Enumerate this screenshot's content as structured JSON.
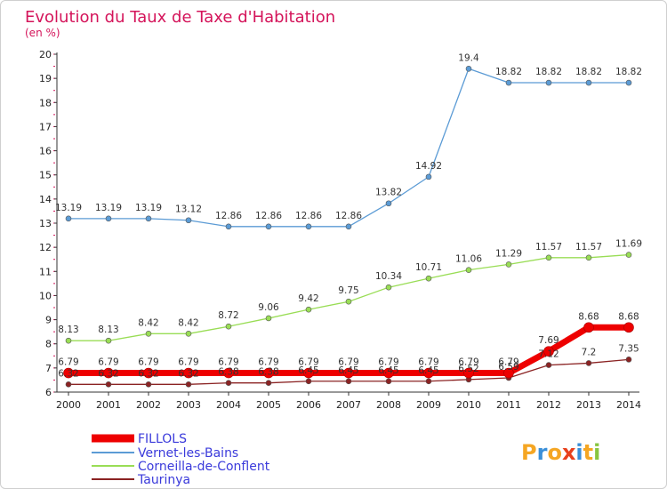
{
  "chart_data": {
    "type": "line",
    "title": "Evolution du Taux de Taxe d'Habitation",
    "ylabel": "(en %)",
    "x": [
      "2000",
      "2001",
      "2002",
      "2003",
      "2004",
      "2005",
      "2006",
      "2007",
      "2008",
      "2009",
      "2010",
      "2011",
      "2012",
      "2013",
      "2014"
    ],
    "ylim": [
      6,
      20
    ],
    "yticks": [
      6,
      7,
      8,
      9,
      10,
      11,
      12,
      13,
      14,
      15,
      16,
      17,
      18,
      19,
      20
    ],
    "legend_placement": "bottom-left",
    "series": [
      {
        "name": "FILLOLS",
        "color": "#ee0000",
        "values": [
          6.79,
          6.79,
          6.79,
          6.79,
          6.79,
          6.79,
          6.79,
          6.79,
          6.79,
          6.79,
          6.79,
          6.79,
          7.69,
          8.68,
          8.68
        ],
        "labels": [
          "6.79",
          "6.79",
          "6.79",
          "6.79",
          "6.79",
          "6.79",
          "6.79",
          "6.79",
          "6.79",
          "6.79",
          "6.79",
          "6.79",
          "7.69",
          "8.68",
          "8.68"
        ]
      },
      {
        "name": "Vernet-les-Bains",
        "color": "#5b9bd5",
        "values": [
          13.19,
          13.19,
          13.19,
          13.12,
          12.86,
          12.86,
          12.86,
          12.86,
          13.82,
          14.92,
          19.4,
          18.82,
          18.82,
          18.82,
          18.82
        ],
        "labels": [
          "13.19",
          "13.19",
          "13.19",
          "13.12",
          "12.86",
          "12.86",
          "12.86",
          "12.86",
          "13.82",
          "14.92",
          "19.4",
          "18.82",
          "18.82",
          "18.82",
          "18.82"
        ]
      },
      {
        "name": "Corneilla-de-Conflent",
        "color": "#99dd55",
        "values": [
          8.13,
          8.13,
          8.42,
          8.42,
          8.72,
          9.06,
          9.42,
          9.75,
          10.34,
          10.71,
          11.06,
          11.29,
          11.57,
          11.57,
          11.69
        ],
        "labels": [
          "8.13",
          "8.13",
          "8.42",
          "8.42",
          "8.72",
          "9.06",
          "9.42",
          "9.75",
          "10.34",
          "10.71",
          "11.06",
          "11.29",
          "11.57",
          "11.57",
          "11.69"
        ]
      },
      {
        "name": "Taurinya",
        "color": "#8b2323",
        "values": [
          6.32,
          6.32,
          6.32,
          6.32,
          6.38,
          6.38,
          6.45,
          6.45,
          6.45,
          6.45,
          6.52,
          6.59,
          7.12,
          7.2,
          7.35
        ],
        "labels": [
          "6.32",
          "6.32",
          "6.32",
          "6.32",
          "6.38",
          "6.38",
          "6.45",
          "6.45",
          "6.45",
          "6.45",
          "6.52",
          "6.59",
          "7.12",
          "7.2",
          "7.35"
        ]
      }
    ]
  },
  "logo": {
    "text": "Proxiti"
  }
}
